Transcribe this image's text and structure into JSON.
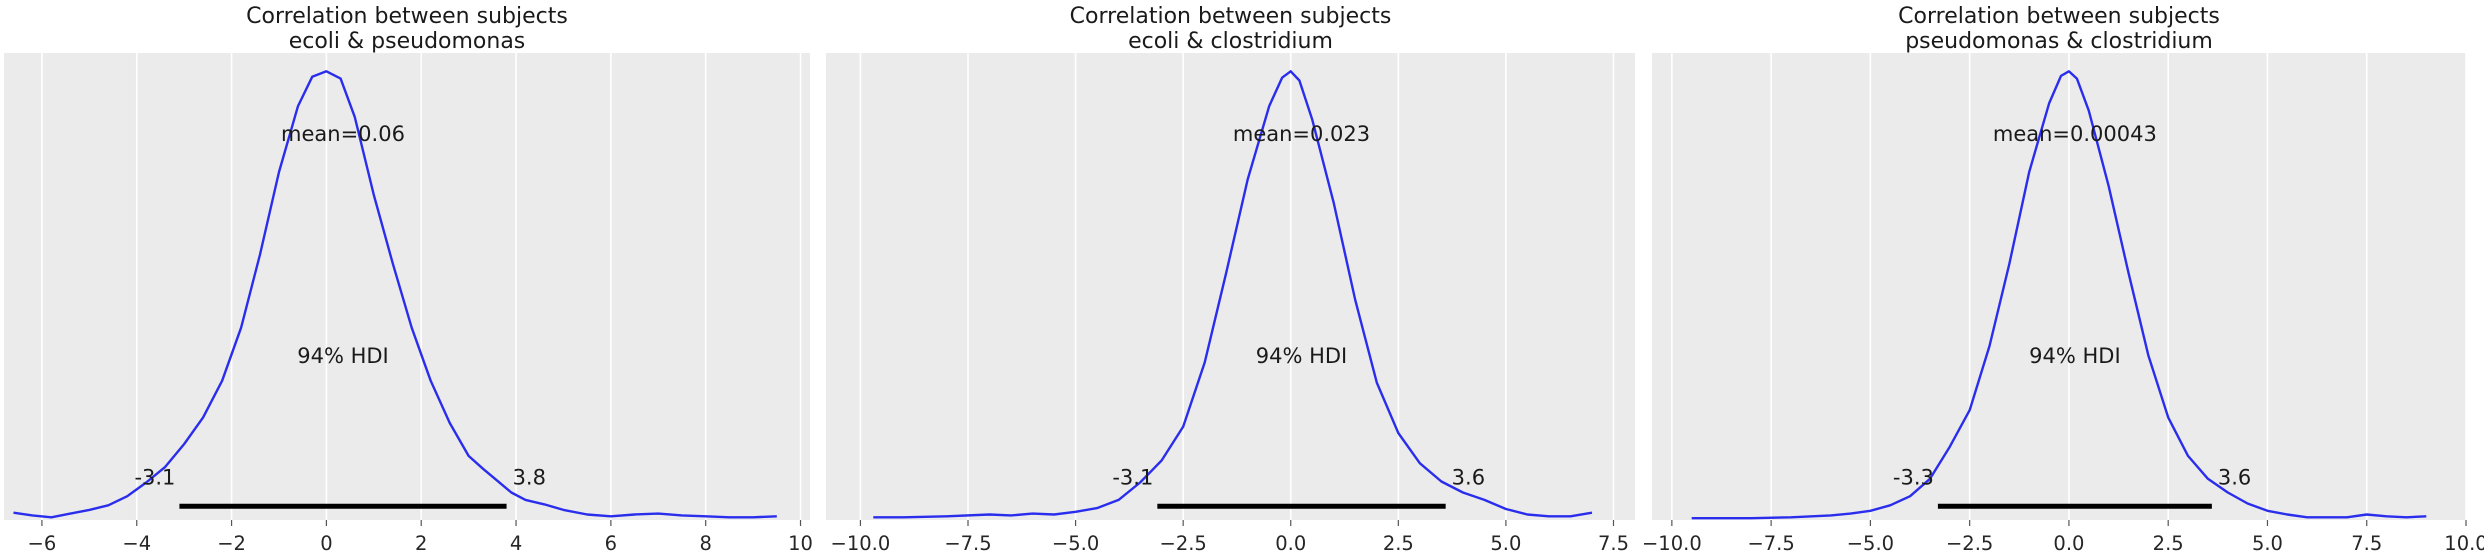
{
  "chart_data": [
    {
      "type": "line",
      "title": [
        "Correlation between subjects",
        "ecoli & pseudomonas"
      ],
      "xlabel": "",
      "ylabel": "",
      "xlim": [
        -6.8,
        10.2
      ],
      "xticks": [
        -6,
        -4,
        -2,
        0,
        2,
        4,
        6,
        8,
        10
      ],
      "xtick_labels": [
        "−6",
        "−4",
        "−2",
        "0",
        "2",
        "4",
        "6",
        "8",
        "10"
      ],
      "grid": true,
      "series": [
        {
          "x": [
            -6.6,
            -6.2,
            -5.8,
            -5.4,
            -5.0,
            -4.6,
            -4.2,
            -3.8,
            -3.4,
            -3.0,
            -2.6,
            -2.2,
            -1.8,
            -1.4,
            -1.0,
            -0.6,
            -0.3,
            0.0,
            0.3,
            0.6,
            1.0,
            1.4,
            1.8,
            2.2,
            2.6,
            3.0,
            3.3,
            3.6,
            3.9,
            4.2,
            4.6,
            5.0,
            5.5,
            6.0,
            6.5,
            7.0,
            7.5,
            8.0,
            8.5,
            9.0,
            9.5
          ],
          "y": [
            0.008,
            0.005,
            0.003,
            0.007,
            0.011,
            0.016,
            0.026,
            0.041,
            0.058,
            0.083,
            0.112,
            0.152,
            0.21,
            0.29,
            0.38,
            0.452,
            0.484,
            0.49,
            0.482,
            0.44,
            0.355,
            0.28,
            0.21,
            0.152,
            0.106,
            0.07,
            0.056,
            0.043,
            0.03,
            0.022,
            0.017,
            0.011,
            0.006,
            0.004,
            0.006,
            0.007,
            0.005,
            0.004,
            0.003,
            0.003,
            0.004
          ]
        }
      ],
      "mean_label": "mean=0.06",
      "hdi_label": "94% HDI",
      "hdi": [
        -3.1,
        3.8
      ],
      "hdi_low_label": "-3.1",
      "hdi_high_label": "3.8"
    },
    {
      "type": "line",
      "title": [
        "Correlation between subjects",
        "ecoli & clostridium"
      ],
      "xlabel": "",
      "ylabel": "",
      "xlim": [
        -10.8,
        8.0
      ],
      "xticks": [
        -10.0,
        -7.5,
        -5.0,
        -2.5,
        0.0,
        2.5,
        5.0,
        7.5
      ],
      "xtick_labels": [
        "−10.0",
        "−7.5",
        "−5.0",
        "−2.5",
        "0.0",
        "2.5",
        "5.0",
        "7.5"
      ],
      "grid": true,
      "series": [
        {
          "x": [
            -9.7,
            -9.0,
            -8.0,
            -7.0,
            -6.5,
            -6.0,
            -5.5,
            -5.0,
            -4.5,
            -4.0,
            -3.5,
            -3.0,
            -2.5,
            -2.0,
            -1.5,
            -1.0,
            -0.5,
            -0.2,
            0.0,
            0.2,
            0.5,
            1.0,
            1.5,
            2.0,
            2.5,
            3.0,
            3.5,
            4.0,
            4.5,
            5.0,
            5.5,
            6.0,
            6.5,
            7.0
          ],
          "y": [
            0.003,
            0.003,
            0.004,
            0.006,
            0.005,
            0.007,
            0.006,
            0.009,
            0.013,
            0.022,
            0.041,
            0.065,
            0.102,
            0.172,
            0.27,
            0.372,
            0.452,
            0.483,
            0.49,
            0.48,
            0.437,
            0.346,
            0.24,
            0.15,
            0.095,
            0.062,
            0.042,
            0.03,
            0.022,
            0.012,
            0.006,
            0.004,
            0.004,
            0.008
          ]
        }
      ],
      "mean_label": "mean=0.023",
      "hdi_label": "94% HDI",
      "hdi": [
        -3.1,
        3.6
      ],
      "hdi_low_label": "-3.1",
      "hdi_high_label": "3.6"
    },
    {
      "type": "line",
      "title": [
        "Correlation between subjects",
        "pseudomonas & clostridium"
      ],
      "xlabel": "",
      "ylabel": "",
      "xlim": [
        -10.5,
        10.0
      ],
      "xticks": [
        -10.0,
        -7.5,
        -5.0,
        -2.5,
        0.0,
        2.5,
        5.0,
        7.5,
        10.0
      ],
      "xtick_labels": [
        "−10.0",
        "−7.5",
        "−5.0",
        "−2.5",
        "0.0",
        "2.5",
        "5.0",
        "7.5",
        "10.0"
      ],
      "grid": true,
      "series": [
        {
          "x": [
            -9.5,
            -9.0,
            -8.0,
            -7.0,
            -6.0,
            -5.5,
            -5.0,
            -4.5,
            -4.0,
            -3.5,
            -3.0,
            -2.5,
            -2.0,
            -1.5,
            -1.0,
            -0.5,
            -0.2,
            0.0,
            0.2,
            0.5,
            1.0,
            1.5,
            2.0,
            2.5,
            3.0,
            3.5,
            4.0,
            4.5,
            5.0,
            5.5,
            6.0,
            7.0,
            7.5,
            8.0,
            8.5,
            9.0
          ],
          "y": [
            0.002,
            0.002,
            0.002,
            0.003,
            0.005,
            0.007,
            0.01,
            0.016,
            0.026,
            0.045,
            0.08,
            0.12,
            0.19,
            0.28,
            0.38,
            0.455,
            0.485,
            0.49,
            0.482,
            0.447,
            0.365,
            0.27,
            0.18,
            0.112,
            0.07,
            0.045,
            0.03,
            0.018,
            0.01,
            0.006,
            0.003,
            0.003,
            0.006,
            0.004,
            0.003,
            0.004
          ]
        }
      ],
      "mean_label": "mean=0.00043",
      "hdi_label": "94% HDI",
      "hdi": [
        -3.3,
        3.6
      ],
      "hdi_low_label": "-3.3",
      "hdi_high_label": "3.6"
    }
  ]
}
